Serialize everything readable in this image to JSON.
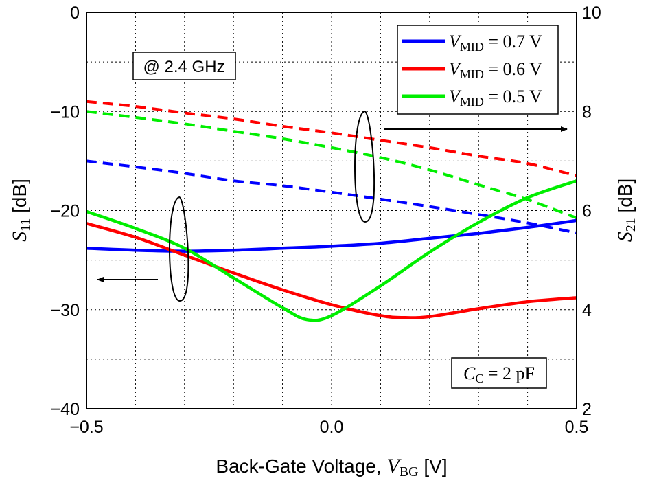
{
  "chart_data": {
    "type": "line",
    "x_axis": {
      "label_text": "Back-Gate Voltage, ",
      "label_var": "V",
      "label_sub": "BG",
      "label_unit": " [V]",
      "range": [
        -0.5,
        0.5
      ],
      "ticks": [
        -0.5,
        0.0,
        0.5
      ],
      "tick_labels": [
        "−0.5",
        "0.0",
        "0.5"
      ]
    },
    "y_left": {
      "label_var": "S",
      "label_sub": "11",
      "label_unit": " [dB]",
      "range": [
        -40,
        0
      ],
      "ticks": [
        -40,
        -30,
        -20,
        -10,
        0
      ],
      "tick_labels": [
        "−40",
        "−30",
        "−20",
        "−10",
        "0"
      ]
    },
    "y_right": {
      "label_var": "S",
      "label_sub": "21",
      "label_unit": " [dB]",
      "range": [
        2,
        10
      ],
      "ticks": [
        2,
        4,
        6,
        8,
        10
      ],
      "tick_labels": [
        "2",
        "4",
        "6",
        "8",
        "10"
      ]
    },
    "grid": true,
    "legend_position": "top-right",
    "annotations": {
      "frequency": "@ 2.4 GHz",
      "coupling_var": "C",
      "coupling_sub": "C",
      "coupling_value": " = 2 pF"
    },
    "series": [
      {
        "name_var": "V",
        "name_sub": "MID",
        "name_value": " = 0.7 V",
        "color": "#0000ff",
        "s11": {
          "x": [
            -0.5,
            -0.4,
            -0.3,
            -0.2,
            -0.1,
            0.0,
            0.1,
            0.2,
            0.3,
            0.4,
            0.5
          ],
          "y": [
            -23.8,
            -24.0,
            -24.1,
            -24.0,
            -23.8,
            -23.6,
            -23.3,
            -22.8,
            -22.3,
            -21.7,
            -21.0
          ]
        },
        "s21": {
          "x": [
            -0.5,
            -0.4,
            -0.3,
            -0.2,
            -0.1,
            0.0,
            0.1,
            0.2,
            0.3,
            0.4,
            0.5
          ],
          "y": [
            7.0,
            6.88,
            6.75,
            6.6,
            6.5,
            6.37,
            6.23,
            6.08,
            5.92,
            5.75,
            5.55
          ]
        }
      },
      {
        "name_var": "V",
        "name_sub": "MID",
        "name_value": " = 0.6 V",
        "color": "#ff0000",
        "s11": {
          "x": [
            -0.5,
            -0.4,
            -0.3,
            -0.2,
            -0.1,
            0.0,
            0.1,
            0.15,
            0.2,
            0.3,
            0.4,
            0.5
          ],
          "y": [
            -21.3,
            -22.7,
            -24.5,
            -26.3,
            -28.0,
            -29.5,
            -30.6,
            -30.8,
            -30.7,
            -29.9,
            -29.2,
            -28.8
          ]
        },
        "s21": {
          "x": [
            -0.5,
            -0.4,
            -0.3,
            -0.2,
            -0.1,
            0.0,
            0.1,
            0.2,
            0.3,
            0.4,
            0.5
          ],
          "y": [
            8.2,
            8.1,
            7.97,
            7.85,
            7.7,
            7.57,
            7.42,
            7.27,
            7.1,
            6.95,
            6.7
          ]
        }
      },
      {
        "name_var": "V",
        "name_sub": "MID",
        "name_value": " = 0.5 V",
        "color": "#00ee00",
        "s11": {
          "x": [
            -0.5,
            -0.4,
            -0.3,
            -0.2,
            -0.1,
            -0.05,
            0.0,
            0.1,
            0.2,
            0.3,
            0.4,
            0.5
          ],
          "y": [
            -20.1,
            -21.8,
            -23.8,
            -26.8,
            -29.8,
            -31.0,
            -30.6,
            -27.6,
            -24.2,
            -21.2,
            -18.7,
            -17.0
          ]
        },
        "s21": {
          "x": [
            -0.5,
            -0.4,
            -0.3,
            -0.2,
            -0.1,
            0.0,
            0.1,
            0.2,
            0.3,
            0.4,
            0.5
          ],
          "y": [
            8.0,
            7.88,
            7.75,
            7.6,
            7.45,
            7.27,
            7.07,
            6.82,
            6.52,
            6.22,
            5.85
          ]
        }
      }
    ]
  }
}
